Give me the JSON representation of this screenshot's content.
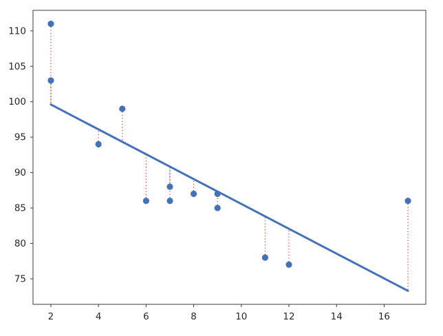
{
  "chart_data": {
    "type": "scatter",
    "title": "",
    "xlabel": "",
    "ylabel": "",
    "grid": false,
    "legend": null,
    "points": [
      [
        2,
        111
      ],
      [
        2,
        103
      ],
      [
        4,
        94
      ],
      [
        5,
        99
      ],
      [
        6,
        86
      ],
      [
        7,
        88
      ],
      [
        7,
        86
      ],
      [
        8,
        87
      ],
      [
        9,
        87
      ],
      [
        9,
        85
      ],
      [
        11,
        78
      ],
      [
        12,
        77
      ],
      [
        17,
        86
      ]
    ],
    "regression_line": {
      "x1": 2,
      "y1": 99.6,
      "x2": 17,
      "y2": 73.3
    },
    "residuals_shown": true,
    "xticks": [
      2,
      4,
      6,
      8,
      10,
      12,
      14,
      16
    ],
    "yticks": [
      75,
      80,
      85,
      90,
      95,
      100,
      105,
      110
    ],
    "xlim": [
      1.25,
      17.75
    ],
    "ylim": [
      71.4,
      112.9
    ],
    "colors": {
      "marker": "#4472b8",
      "line": "#4472b8",
      "residual": "#d7432c",
      "axis": "#383838",
      "tick_label": "#262626",
      "background": "#ffffff"
    }
  }
}
